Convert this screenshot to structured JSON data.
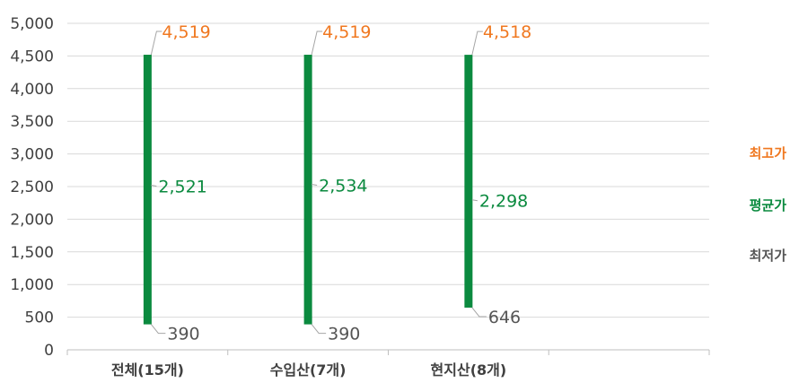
{
  "chart_data": {
    "type": "bar",
    "subtype": "high-low",
    "categories": [
      "전체(15개)",
      "수입산(7개)",
      "현지산(8개)"
    ],
    "series": [
      {
        "name": "최고가",
        "values": [
          4519,
          4519,
          4518
        ],
        "color": "#f07820"
      },
      {
        "name": "평균가",
        "values": [
          2521,
          2534,
          2298
        ],
        "color": "#0b8a3f"
      },
      {
        "name": "최저가",
        "values": [
          390,
          390,
          646
        ],
        "color": "#555555"
      }
    ],
    "value_labels": {
      "max": [
        "4,519",
        "4,519",
        "4,518"
      ],
      "avg": [
        "2,521",
        "2,534",
        "2,298"
      ],
      "min": [
        "390",
        "390",
        "646"
      ]
    },
    "bar_color": "#0b8a3f",
    "ylim": [
      0,
      5000
    ],
    "yticks": [
      "0",
      "500",
      "1,000",
      "1,500",
      "2,000",
      "2,500",
      "3,000",
      "3,500",
      "4,000",
      "4,500",
      "5,000"
    ],
    "grid": true,
    "legend_position": "right",
    "title": "",
    "xlabel": "",
    "ylabel": ""
  }
}
